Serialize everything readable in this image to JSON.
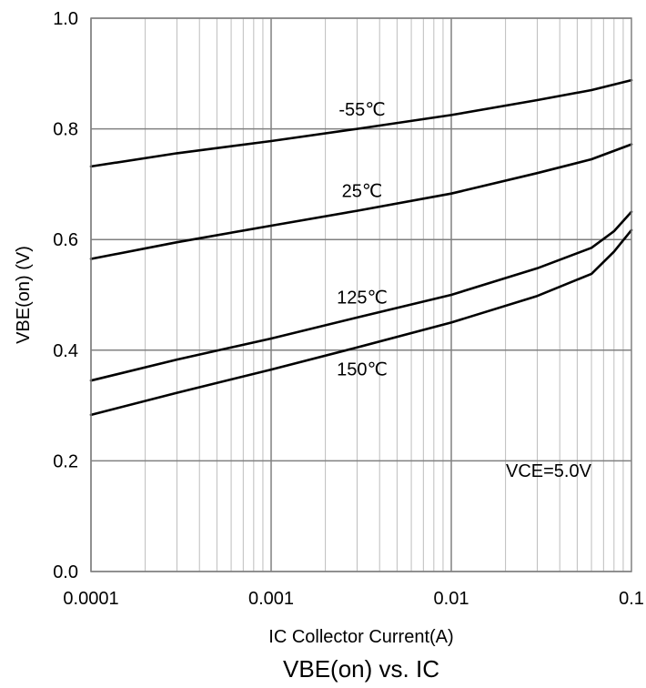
{
  "chart_data": {
    "type": "line",
    "title": "VBE(on) vs. IC",
    "xlabel": "IC Collector Current(A)",
    "ylabel": "VBE(on) (V)",
    "xscale": "log",
    "xlim": [
      0.0001,
      0.1
    ],
    "ylim": [
      0.0,
      1.0
    ],
    "grid": true,
    "xticks": [
      0.0001,
      0.001,
      0.01,
      0.1
    ],
    "xtick_labels": [
      "0.0001",
      "0.001",
      "0.01",
      "0.1"
    ],
    "yticks": [
      0.0,
      0.2,
      0.4,
      0.6,
      0.8,
      1.0
    ],
    "ytick_labels": [
      "0.0",
      "0.2",
      "0.4",
      "0.6",
      "0.8",
      "1.0"
    ],
    "annotation": "VCE=5.0V",
    "series": [
      {
        "name": "-55℃",
        "x": [
          0.0001,
          0.0003,
          0.001,
          0.003,
          0.01,
          0.03,
          0.06,
          0.1
        ],
        "y": [
          0.732,
          0.756,
          0.778,
          0.8,
          0.825,
          0.852,
          0.87,
          0.888
        ]
      },
      {
        "name": "25℃",
        "x": [
          0.0001,
          0.0003,
          0.001,
          0.003,
          0.01,
          0.03,
          0.06,
          0.1
        ],
        "y": [
          0.565,
          0.595,
          0.625,
          0.652,
          0.683,
          0.72,
          0.745,
          0.772
        ]
      },
      {
        "name": "125℃",
        "x": [
          0.0001,
          0.0003,
          0.001,
          0.003,
          0.01,
          0.03,
          0.06,
          0.08,
          0.1
        ],
        "y": [
          0.345,
          0.383,
          0.421,
          0.459,
          0.5,
          0.548,
          0.585,
          0.615,
          0.65
        ]
      },
      {
        "name": "150℃",
        "x": [
          0.0001,
          0.0003,
          0.001,
          0.003,
          0.01,
          0.03,
          0.06,
          0.08,
          0.1
        ],
        "y": [
          0.283,
          0.323,
          0.365,
          0.405,
          0.45,
          0.498,
          0.538,
          0.578,
          0.617
        ]
      }
    ]
  }
}
